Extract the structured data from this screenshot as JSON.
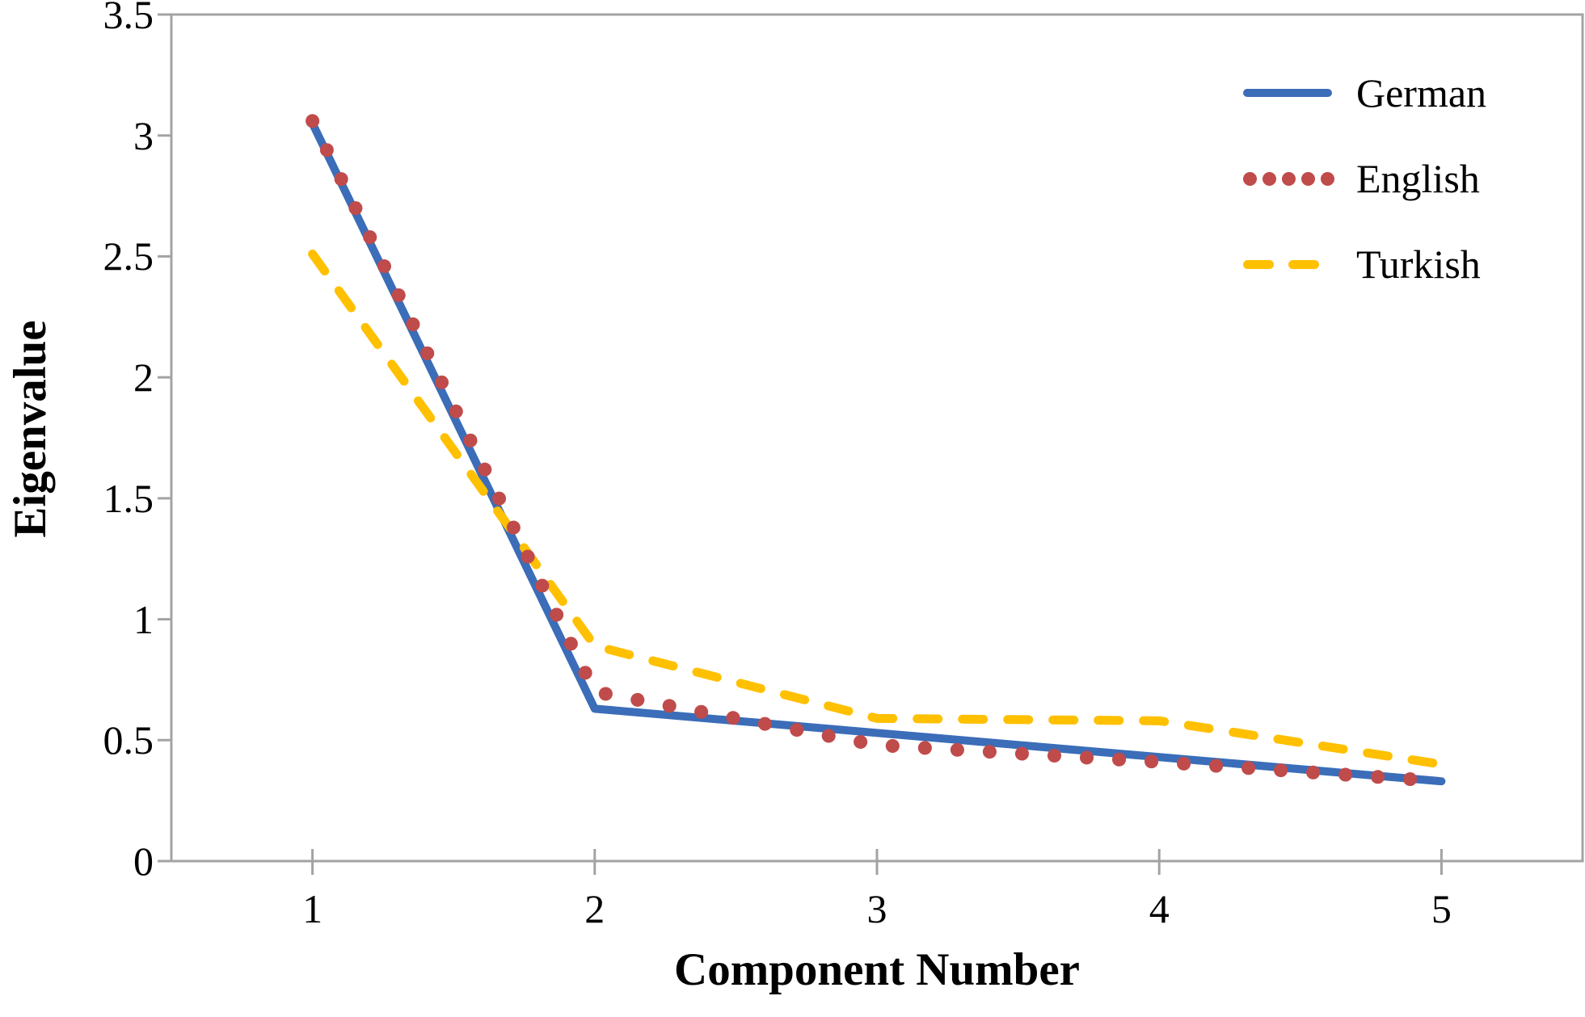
{
  "figure": {
    "background": "#ffffff",
    "axis_color": "#a3a3a3",
    "text_color": "#000000"
  },
  "chart_data": {
    "type": "line",
    "title": "",
    "xlabel": "Component Number",
    "ylabel": "Eigenvalue",
    "x": [
      1,
      2,
      3,
      4,
      5
    ],
    "x_tick_labels": [
      "1",
      "2",
      "3",
      "4",
      "5"
    ],
    "y_ticks": [
      0,
      0.5,
      1,
      1.5,
      2,
      2.5,
      3,
      3.5
    ],
    "y_tick_labels": [
      "0",
      "0.5",
      "1",
      "1.5",
      "2",
      "2.5",
      "3",
      "3.5"
    ],
    "ylim": [
      0,
      3.5
    ],
    "grid": false,
    "legend_position": "top-right-inside",
    "series": [
      {
        "name": "German",
        "style": "solid",
        "color": "#3b6db8",
        "values": [
          3.05,
          0.63,
          0.53,
          0.43,
          0.33
        ]
      },
      {
        "name": "English",
        "style": "dotted",
        "color": "#c04b4b",
        "values": [
          3.06,
          0.7,
          0.48,
          0.41,
          0.33
        ]
      },
      {
        "name": "Turkish",
        "style": "dashed",
        "color": "#ffc000",
        "values": [
          2.51,
          0.89,
          0.59,
          0.58,
          0.4
        ]
      }
    ]
  }
}
